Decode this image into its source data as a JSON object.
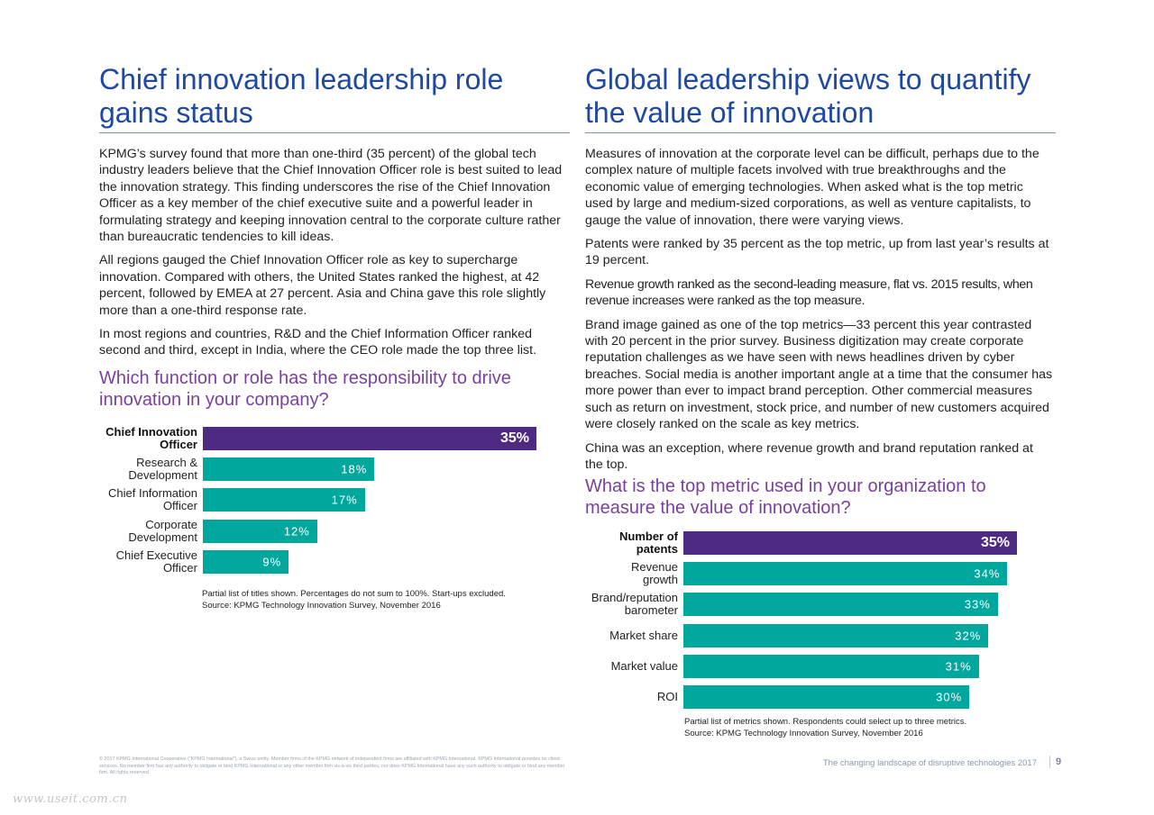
{
  "colors": {
    "title_blue": "#1e49a1",
    "subtitle_purple": "#7a3fa0",
    "bar_purple": "#4f2a83",
    "bar_teal": "#00a79d"
  },
  "left": {
    "title": "Chief innovation leadership role gains status",
    "paragraphs": [
      "KPMG’s survey found that more than one-third (35 percent) of the global tech industry leaders believe that the Chief Innovation Officer role is best suited to lead the innovation strategy. This finding underscores the rise of the Chief Innovation Officer as a key member of the chief executive suite and a powerful leader in formulating strategy and keeping innovation central to the corporate culture rather than bureaucratic tendencies to kill ideas.",
      "All regions gauged the Chief Innovation Officer role as key to supercharge innovation. Compared with others, the United States ranked the highest, at 42 percent, followed by EMEA at 27 percent. Asia and China gave this role slightly more than a one-third response rate.",
      "In most regions and countries, R&D and the Chief Information Officer ranked second and third, except in India, where the CEO role made the top three list."
    ],
    "chart_title": "Which function or role has the responsibility to drive innovation in your company?",
    "note_line1": "Partial list of titles shown. Percentages do not sum to 100%. Start-ups excluded.",
    "note_line2": "Source: KPMG Technology Innovation Survey, November 2016"
  },
  "right": {
    "title": "Global leadership views to quantify the value of innovation",
    "paragraphs": [
      "Measures of innovation at the corporate level can be difficult, perhaps due to the complex nature of multiple facets involved with true breakthroughs and the economic value of emerging technologies. When asked what is the top metric used by large and medium-sized corporations, as well as venture capitalists, to gauge the value of innovation, there were varying views.",
      "Patents were ranked by 35 percent as the top metric, up from last year’s results at 19 percent.",
      "Revenue growth ranked as the second-leading measure, flat vs. 2015 results, when revenue increases were ranked as the top measure.",
      "Brand image gained as one of the top metrics—33 percent this year contrasted with 20 percent in the prior survey. Business digitization may create corporate reputation challenges as we have seen with news headlines driven by cyber breaches. Social media is another important angle at a time that the consumer has more power than ever to impact brand perception. Other commercial measures such as return on investment, stock price, and number of new customers acquired were closely ranked on the scale as key metrics.",
      "China was an exception, where revenue growth and brand reputation ranked at the top."
    ],
    "chart_title": "What is the top metric used in your organization to measure the value of innovation?",
    "note_line1": "Partial list of metrics shown. Respondents could select up to three metrics.",
    "note_line2": "Source: KPMG Technology Innovation Survey, November 2016"
  },
  "chart_data": [
    {
      "type": "bar",
      "orientation": "horizontal",
      "title": "Which function or role has the responsibility to drive innovation in your company?",
      "categories": [
        "Chief Innovation Officer",
        "Research & Development",
        "Chief Information Officer",
        "Corporate Development",
        "Chief Executive Officer"
      ],
      "label_lines": [
        [
          "Chief Innovation",
          "Officer"
        ],
        [
          "Research &",
          "Development"
        ],
        [
          "Chief Information",
          "Officer"
        ],
        [
          "Corporate",
          "Development"
        ],
        [
          "Chief Executive",
          "Officer"
        ]
      ],
      "values": [
        35,
        18,
        17,
        12,
        9
      ],
      "value_labels": [
        "35%",
        "18%",
        "17%",
        "12%",
        "9%"
      ],
      "highlight_index": 0,
      "xlim": [
        0,
        35
      ]
    },
    {
      "type": "bar",
      "orientation": "horizontal",
      "title": "What is the top metric used in your organization to measure the value of innovation?",
      "categories": [
        "Number of patents",
        "Revenue growth",
        "Brand/reputation barometer",
        "Market share",
        "Market value",
        "ROI"
      ],
      "label_lines": [
        [
          "Number of",
          "patents"
        ],
        [
          "Revenue",
          "growth"
        ],
        [
          "Brand/reputation",
          "barometer"
        ],
        [
          "Market share"
        ],
        [
          "Market value"
        ],
        [
          "ROI"
        ]
      ],
      "values": [
        35,
        34,
        33,
        32,
        31,
        30
      ],
      "value_labels": [
        "35%",
        "34%",
        "33%",
        "32%",
        "31%",
        "30%"
      ],
      "highlight_index": 0,
      "xlim": [
        0,
        35
      ]
    }
  ],
  "footer": {
    "legal": "© 2017 KPMG International Cooperative (“KPMG International”), a Swiss entity. Member firms of the KPMG network of independent firms are affiliated with KPMG International. KPMG International provides no client services. No member firm has any authority to obligate or bind KPMG International or any other member firm vis-à-vis third parties, nor does KPMG International have any such authority to obligate or bind any member firm. All rights reserved.",
    "report_title": "The changing landscape of disruptive technologies  2017",
    "page_number": "9",
    "watermark": "www.useit.com.cn"
  }
}
